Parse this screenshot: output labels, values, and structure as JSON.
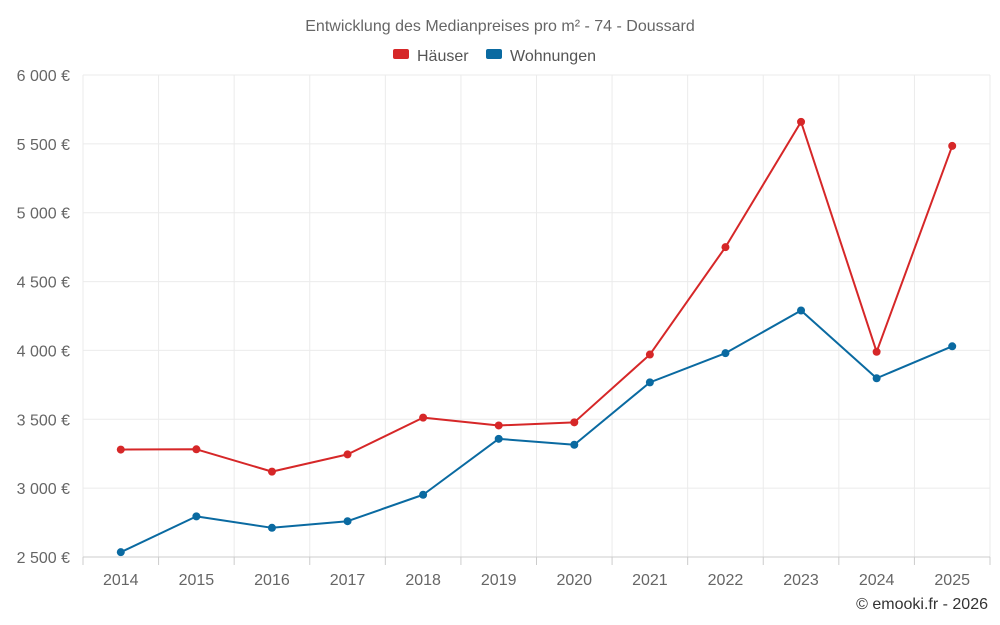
{
  "chart_data": {
    "type": "line",
    "title": "Entwicklung des Medianpreises pro m² - 74 - Doussard",
    "x": [
      "2014",
      "2015",
      "2016",
      "2017",
      "2018",
      "2019",
      "2020",
      "2021",
      "2022",
      "2023",
      "2024",
      "2025"
    ],
    "y_ticks": [
      "2 500 €",
      "3 000 €",
      "3 500 €",
      "4 000 €",
      "4 500 €",
      "5 000 €",
      "5 500 €",
      "6 000 €"
    ],
    "y_tick_values": [
      2500,
      3000,
      3500,
      4000,
      4500,
      5000,
      5500,
      6000
    ],
    "ylim": [
      2500,
      6000
    ],
    "xlabel": "",
    "ylabel": "",
    "grid": true,
    "legend_position": "top-center",
    "series": [
      {
        "name": "Häuser",
        "color": "#d62728",
        "values": [
          3280,
          3282,
          3120,
          3245,
          3512,
          3455,
          3478,
          3970,
          4750,
          5660,
          3990,
          5485
        ]
      },
      {
        "name": "Wohnungen",
        "color": "#0a6aa1",
        "values": [
          2535,
          2795,
          2712,
          2760,
          2952,
          3358,
          3315,
          3768,
          3980,
          4290,
          3798,
          4030
        ]
      }
    ],
    "credit": "© emooki.fr - 2026"
  }
}
